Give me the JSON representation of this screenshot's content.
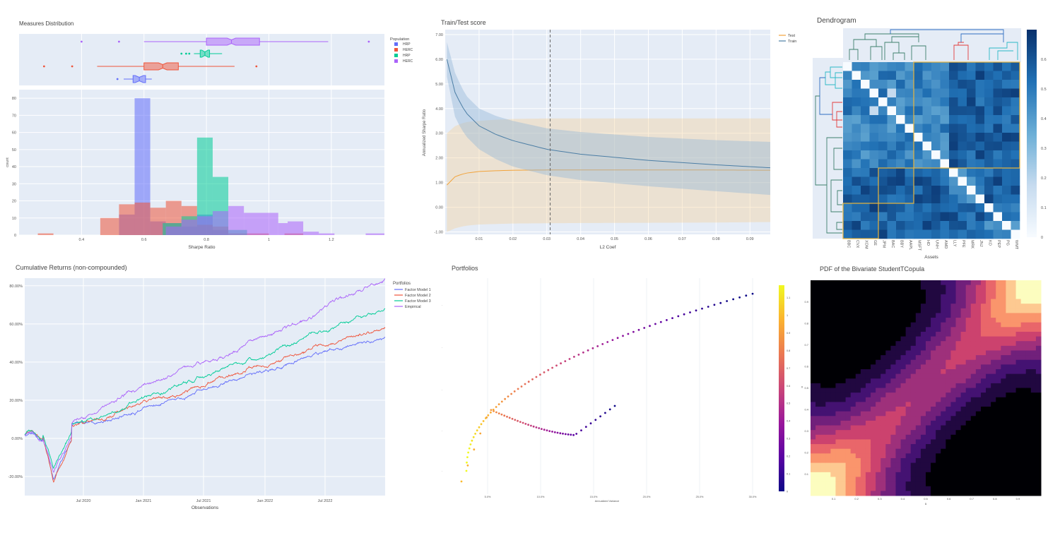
{
  "panels": {
    "measures": {
      "title": "Measures Distribution"
    },
    "traintest": {
      "title": "Train/Test score"
    },
    "dendrogram": {
      "title": "Dendrogram"
    },
    "cumret": {
      "title": "Cumulative Returns (non-compounded)"
    },
    "portfolios": {
      "title": "Portfolios"
    },
    "copula": {
      "title": "PDF of the Bivariate StudentTCopula"
    }
  },
  "chart_data": [
    {
      "id": "measures",
      "type": "bar",
      "title": "Measures Distribution",
      "xlabel": "Sharpe Ratio",
      "ylabel": "count",
      "xlim": [
        0.2,
        1.37
      ],
      "ylim": [
        0,
        85
      ],
      "xticks": [
        "0.4",
        "0.6",
        "0.8",
        "1",
        "1.2"
      ],
      "yticks": [
        "0",
        "10",
        "20",
        "30",
        "40",
        "50",
        "60",
        "70",
        "80"
      ],
      "legend_title": "Population",
      "legend_position": "top-right",
      "series": [
        {
          "name": "HRP",
          "color": "#636efa",
          "bins": [
            [
              0.52,
              0.57,
              12
            ],
            [
              0.57,
              0.62,
              80
            ],
            [
              0.62,
              0.67,
              8
            ],
            [
              0.67,
              0.72,
              7
            ],
            [
              0.72,
              0.77,
              5
            ],
            [
              0.77,
              0.82,
              12
            ],
            [
              0.82,
              0.87,
              3
            ]
          ],
          "box": {
            "q1": 0.565,
            "median": 0.585,
            "q3": 0.605,
            "lower": 0.535,
            "upper": 0.625,
            "outliers": [
              0.515
            ]
          }
        },
        {
          "name": "HERC",
          "color": "#ef553b",
          "bins": [
            [
              0.26,
              0.31,
              1
            ],
            [
              0.46,
              0.52,
              10
            ],
            [
              0.52,
              0.57,
              18
            ],
            [
              0.57,
              0.62,
              19
            ],
            [
              0.62,
              0.67,
              16
            ],
            [
              0.67,
              0.72,
              20
            ],
            [
              0.72,
              0.77,
              17
            ],
            [
              0.77,
              0.82,
              6
            ],
            [
              0.82,
              0.87,
              5
            ],
            [
              0.87,
              1.0,
              1
            ],
            [
              1.05,
              1.11,
              1
            ]
          ],
          "box": {
            "q1": 0.6,
            "median": 0.66,
            "q3": 0.71,
            "lower": 0.45,
            "upper": 0.89,
            "outliers": [
              0.28,
              0.37,
              0.96
            ]
          }
        },
        {
          "name": "HRP",
          "color": "#00cc96",
          "bins": [
            [
              0.66,
              0.72,
              7
            ],
            [
              0.72,
              0.77,
              11
            ],
            [
              0.77,
              0.82,
              57
            ],
            [
              0.82,
              0.87,
              34
            ],
            [
              0.87,
              0.93,
              3
            ]
          ],
          "box": {
            "q1": 0.78,
            "median": 0.795,
            "q3": 0.81,
            "lower": 0.76,
            "upper": 0.85,
            "outliers": [
              0.72,
              0.735,
              0.745
            ]
          }
        },
        {
          "name": "HERC",
          "color": "#ab63fa",
          "bins": [
            [
              0.67,
              0.72,
              5
            ],
            [
              0.72,
              0.77,
              9
            ],
            [
              0.77,
              0.82,
              11
            ],
            [
              0.82,
              0.87,
              14
            ],
            [
              0.87,
              0.92,
              17
            ],
            [
              0.92,
              1.03,
              13
            ],
            [
              1.03,
              1.06,
              7
            ],
            [
              1.06,
              1.11,
              8
            ],
            [
              1.11,
              1.16,
              2
            ],
            [
              1.16,
              1.21,
              1
            ],
            [
              1.31,
              1.37,
              1
            ]
          ],
          "box": {
            "q1": 0.8,
            "median": 0.88,
            "q3": 0.97,
            "lower": 0.6,
            "upper": 1.19,
            "outliers": [
              0.4,
              0.52,
              1.32
            ]
          }
        }
      ]
    },
    {
      "id": "traintest",
      "type": "line",
      "title": "Train/Test score",
      "xlabel": "L2 Coef",
      "ylabel": "Annualized Sharpe Ratio",
      "xlim": [
        0.0,
        0.096
      ],
      "ylim": [
        -1.1,
        7.2
      ],
      "xticks": [
        "0.01",
        "0.02",
        "0.03",
        "0.04",
        "0.05",
        "0.06",
        "0.07",
        "0.08",
        "0.09"
      ],
      "yticks": [
        "-1.00",
        "0.00",
        "1.00",
        "2.00",
        "3.00",
        "4.00",
        "5.00",
        "6.00",
        "7.00"
      ],
      "vline_x": 0.031,
      "legend_position": "top-right",
      "series": [
        {
          "name": "Test",
          "color": "#f2a33a",
          "x": [
            0.0005,
            0.003,
            0.006,
            0.01,
            0.015,
            0.02,
            0.03,
            0.04,
            0.06,
            0.08,
            0.096
          ],
          "y": [
            0.9,
            1.25,
            1.38,
            1.45,
            1.48,
            1.5,
            1.51,
            1.51,
            1.51,
            1.51,
            1.5
          ],
          "band_upper": [
            3.0,
            3.3,
            3.45,
            3.5,
            3.55,
            3.58,
            3.6,
            3.6,
            3.6,
            3.6,
            3.6
          ],
          "band_lower": [
            -1.0,
            -0.85,
            -0.75,
            -0.7,
            -0.68,
            -0.66,
            -0.65,
            -0.64,
            -0.63,
            -0.62,
            -0.6
          ]
        },
        {
          "name": "Train",
          "color": "#4c7ea5",
          "x": [
            0.0005,
            0.003,
            0.006,
            0.01,
            0.015,
            0.02,
            0.03,
            0.04,
            0.06,
            0.08,
            0.096
          ],
          "y": [
            6.0,
            4.6,
            3.85,
            3.3,
            2.95,
            2.7,
            2.35,
            2.15,
            1.9,
            1.72,
            1.6
          ],
          "band_upper": [
            6.7,
            5.4,
            4.55,
            4.0,
            3.7,
            3.5,
            3.2,
            3.05,
            2.85,
            2.72,
            2.65
          ],
          "band_lower": [
            5.3,
            3.6,
            2.9,
            2.35,
            1.95,
            1.65,
            1.3,
            1.1,
            0.85,
            0.65,
            0.5
          ]
        }
      ]
    },
    {
      "id": "dendrogram",
      "type": "heatmap",
      "title": "Dendrogram",
      "xlabel": "Assets",
      "assets": [
        "BBC",
        "CVX",
        "XOM",
        "GE",
        "JPM",
        "BAC",
        "BBY",
        "AAPL",
        "MSFT",
        "HD",
        "UNH",
        "AMD",
        "LLY",
        "PFE",
        "MRK",
        "JNJ",
        "KO",
        "PEP",
        "PG",
        "WMT"
      ],
      "colorscale": [
        "#f7fbff",
        "#c6dbef",
        "#6baed6",
        "#2171b5",
        "#08306b"
      ],
      "colorbar_ticks": [
        "0",
        "0.1",
        "0.2",
        "0.3",
        "0.4",
        "0.5",
        "0.6"
      ],
      "clusters": [
        [
          0,
          11
        ],
        [
          12,
          15
        ],
        [
          16,
          19
        ]
      ]
    },
    {
      "id": "cumret",
      "type": "line",
      "title": "Cumulative Returns (non-compounded)",
      "xlabel": "Observations",
      "ylabel": "",
      "ylim": [
        -30,
        84
      ],
      "xticks": [
        "Jul 2020",
        "Jan 2021",
        "Jul 2021",
        "Jan 2022",
        "Jul 2022"
      ],
      "yticks": [
        "-20.00%",
        "0.00%",
        "20.00%",
        "40.00%",
        "60.00%",
        "80.00%"
      ],
      "legend_title": "Portfolios",
      "legend_position": "top-right",
      "series": [
        {
          "name": "Factor Model 1",
          "color": "#636efa",
          "final": 49
        },
        {
          "name": "Factor Model 2",
          "color": "#ef553b",
          "final": 53
        },
        {
          "name": "Factor Model 3",
          "color": "#00cc96",
          "final": 61
        },
        {
          "name": "Empirical",
          "color": "#ab63fa",
          "final": 75
        }
      ]
    },
    {
      "id": "portfolios",
      "type": "scatter",
      "title": "Portfolios",
      "xlabel": "Annualized Variance",
      "xticks": [
        "5.0%",
        "10.0%",
        "15.0%",
        "20.0%",
        "25.0%",
        "30.0%"
      ],
      "colorbar_ticks": [
        "0",
        "0.1",
        "0.2",
        "0.3",
        "0.4",
        "0.5",
        "0.6",
        "0.7",
        "0.8",
        "0.9",
        "1",
        "1.1"
      ]
    },
    {
      "id": "copula",
      "type": "heatmap",
      "title": "PDF of the Bivariate StudentTCopula",
      "xlabel": "u",
      "ylabel": "v",
      "xticks": [
        "0.1",
        "0.2",
        "0.3",
        "0.4",
        "0.5",
        "0.6",
        "0.7",
        "0.8",
        "0.9"
      ],
      "yticks": [
        "0.1",
        "0.2",
        "0.3",
        "0.4",
        "0.5",
        "0.6",
        "0.7",
        "0.8",
        "0.9"
      ],
      "colorscale": [
        "#000004",
        "#3b0f70",
        "#8c2981",
        "#de4968",
        "#fe9f6d",
        "#fcfdbf"
      ]
    }
  ]
}
